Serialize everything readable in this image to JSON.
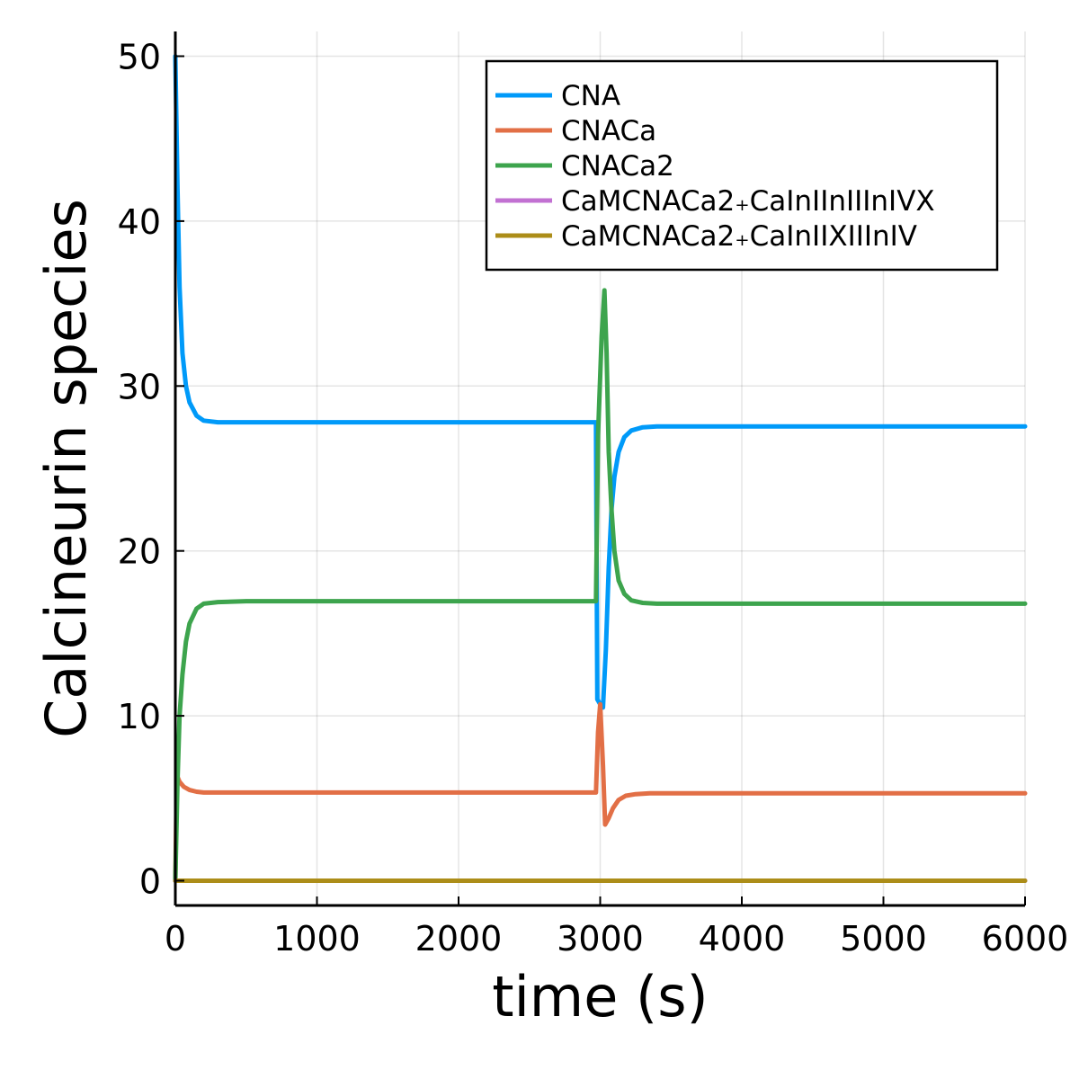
{
  "chart_data": {
    "type": "line",
    "title": "",
    "xlabel": "time (s)",
    "ylabel": "Calcineurin species",
    "xlim": [
      0,
      6000
    ],
    "ylim": [
      -1.5,
      51.5
    ],
    "xticks": [
      0,
      1000,
      2000,
      3000,
      4000,
      5000,
      6000
    ],
    "yticks": [
      0,
      10,
      20,
      30,
      40,
      50
    ],
    "xtick_labels": [
      "0",
      "1000",
      "2000",
      "3000",
      "4000",
      "5000",
      "6000"
    ],
    "ytick_labels": [
      "0",
      "10",
      "20",
      "30",
      "40",
      "50"
    ],
    "grid": true,
    "legend_position": "top-right",
    "series": [
      {
        "name": "CNA",
        "color": "#009af9",
        "x": [
          0,
          15,
          30,
          50,
          75,
          100,
          150,
          200,
          300,
          500,
          1000,
          2000,
          2970,
          2980,
          3000,
          3020,
          3040,
          3060,
          3080,
          3100,
          3130,
          3170,
          3220,
          3300,
          3400,
          3600,
          4000,
          5000,
          6000
        ],
        "y": [
          50,
          42,
          36,
          32,
          30,
          29,
          28.2,
          27.9,
          27.8,
          27.8,
          27.8,
          27.8,
          27.8,
          11,
          10.7,
          10.5,
          14,
          19,
          22.5,
          24.5,
          26.0,
          26.9,
          27.3,
          27.5,
          27.55,
          27.55,
          27.55,
          27.55,
          27.55
        ]
      },
      {
        "name": "CNACa",
        "color": "#e26f46",
        "x": [
          0,
          10,
          30,
          60,
          100,
          150,
          200,
          300,
          500,
          1000,
          2000,
          2970,
          2985,
          3000,
          3020,
          3035,
          3060,
          3090,
          3130,
          3180,
          3250,
          3350,
          3500,
          4000,
          5000,
          6000
        ],
        "y": [
          0,
          6.4,
          6.0,
          5.7,
          5.5,
          5.4,
          5.35,
          5.35,
          5.35,
          5.35,
          5.35,
          5.35,
          9,
          10.7,
          7,
          3.4,
          3.8,
          4.4,
          4.9,
          5.15,
          5.25,
          5.3,
          5.3,
          5.3,
          5.3,
          5.3
        ]
      },
      {
        "name": "CNACa2",
        "color": "#3da44d",
        "x": [
          0,
          15,
          30,
          50,
          75,
          100,
          150,
          200,
          300,
          500,
          1000,
          2000,
          2970,
          2985,
          3010,
          3030,
          3045,
          3060,
          3080,
          3100,
          3130,
          3170,
          3220,
          3300,
          3400,
          3600,
          4000,
          5000,
          6000
        ],
        "y": [
          0,
          6,
          10,
          12.5,
          14.5,
          15.6,
          16.5,
          16.8,
          16.9,
          16.95,
          16.95,
          16.95,
          16.95,
          27,
          33,
          35.8,
          32,
          26,
          22.5,
          20,
          18.2,
          17.4,
          17.0,
          16.85,
          16.8,
          16.8,
          16.8,
          16.8,
          16.8
        ]
      },
      {
        "name": "CaMCNACa2₊CaInIInIIInIVX",
        "color": "#c271d2",
        "x": [
          0,
          6000
        ],
        "y": [
          0,
          0
        ]
      },
      {
        "name": "CaMCNACa2₊CaInIIXIIInIV",
        "color": "#ac8d18",
        "x": [
          0,
          6000
        ],
        "y": [
          0,
          0
        ]
      }
    ]
  }
}
